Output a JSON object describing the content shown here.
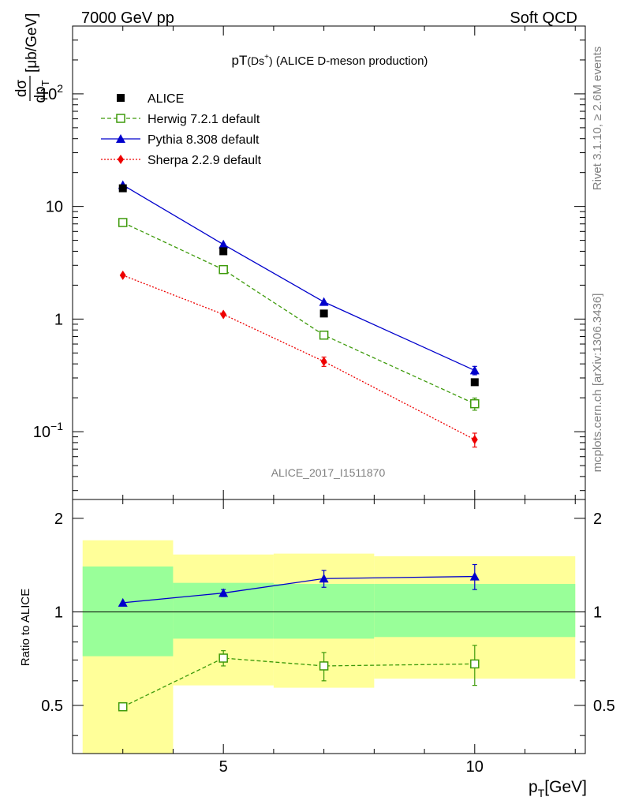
{
  "header": {
    "left": "7000 GeV pp",
    "right": "Soft QCD"
  },
  "side_labels": {
    "rivet": "Rivet 3.1.10, ≥ 2.6M events",
    "source": "mcplots.cern.ch [arXiv:1306.3436]"
  },
  "watermark": "ALICE_2017_I1511870",
  "chart_data": [
    {
      "type": "line",
      "title": "pT(Ds⁺) (ALICE D-meson production)",
      "title_main": "pT",
      "title_particle": "(Ds",
      "title_sup": "+",
      "title_close": ")",
      "title_rest": " (ALICE D-meson production)",
      "ylabel_num": "dσ",
      "ylabel_den": "dp",
      "ylabel_sub": "T",
      "ylabel_units": "[μb/GeV]",
      "yscale": "log",
      "xlim": [
        2,
        12.2
      ],
      "ylim": [
        0.025,
        400
      ],
      "yticks": [
        {
          "value": 100,
          "base": "10",
          "exp": "2"
        },
        {
          "value": 10,
          "base": "10",
          "exp": ""
        },
        {
          "value": 1,
          "base": "1",
          "exp": ""
        },
        {
          "value": 0.1,
          "base": "10",
          "exp": "−1"
        }
      ],
      "legend_position": "top-left",
      "series": [
        {
          "name": "ALICE",
          "style": "data",
          "color": "#000000",
          "marker": "square",
          "x": [
            3,
            5,
            7,
            10
          ],
          "y": [
            14.5,
            4.0,
            1.12,
            0.275
          ],
          "err": [
            0,
            0,
            0,
            0
          ]
        },
        {
          "name": "Herwig 7.2.1 default",
          "style": "dashed",
          "color": "#3d9a0a",
          "marker": "open-square",
          "x": [
            3,
            5,
            7,
            10
          ],
          "y": [
            7.2,
            2.75,
            0.72,
            0.177
          ],
          "err": [
            0,
            0,
            0.05,
            0.022
          ]
        },
        {
          "name": "Pythia 8.308 default",
          "style": "solid",
          "color": "#0000cc",
          "marker": "triangle",
          "x": [
            3,
            5,
            7,
            10
          ],
          "y": [
            15.5,
            4.6,
            1.42,
            0.35
          ],
          "err": [
            0,
            0,
            0,
            0.03
          ]
        },
        {
          "name": "Sherpa 2.2.9 default",
          "style": "dotted",
          "color": "#ee0000",
          "marker": "diamond",
          "x": [
            3,
            5,
            7,
            10
          ],
          "y": [
            2.45,
            1.1,
            0.42,
            0.085
          ],
          "err": [
            0,
            0,
            0.04,
            0.012
          ]
        }
      ]
    },
    {
      "type": "line",
      "ylabel": "Ratio to ALICE",
      "xlabel": "p",
      "xlabel_sub": "T",
      "xlabel_units": "[GeV]",
      "xlim": [
        2,
        12.2
      ],
      "ylim": [
        0.35,
        2.3
      ],
      "xticks": [
        {
          "value": 5,
          "label": "5"
        },
        {
          "value": 10,
          "label": "10"
        }
      ],
      "yticks": [
        {
          "value": 0.5,
          "label": "0.5"
        },
        {
          "value": 1,
          "label": "1"
        },
        {
          "value": 2,
          "label": "2"
        }
      ],
      "bands": [
        {
          "x0": 2.2,
          "x1": 4.0,
          "inner_lo": 0.72,
          "inner_hi": 1.4,
          "outer_lo": 0.35,
          "outer_hi": 1.7
        },
        {
          "x0": 4.0,
          "x1": 6.0,
          "inner_lo": 0.82,
          "inner_hi": 1.24,
          "outer_lo": 0.58,
          "outer_hi": 1.53
        },
        {
          "x0": 6.0,
          "x1": 8.0,
          "inner_lo": 0.82,
          "inner_hi": 1.23,
          "outer_lo": 0.57,
          "outer_hi": 1.54
        },
        {
          "x0": 8.0,
          "x1": 12.0,
          "inner_lo": 0.83,
          "inner_hi": 1.23,
          "outer_lo": 0.61,
          "outer_hi": 1.51
        }
      ],
      "series": [
        {
          "name": "Herwig 7.2.1 default",
          "style": "dashed",
          "color": "#3d9a0a",
          "marker": "open-square",
          "x": [
            3,
            5,
            7,
            10
          ],
          "y": [
            0.495,
            0.71,
            0.67,
            0.68
          ],
          "err": [
            0,
            0.04,
            0.07,
            0.1
          ]
        },
        {
          "name": "Pythia 8.308 default",
          "style": "solid",
          "color": "#0000cc",
          "marker": "triangle",
          "x": [
            3,
            5,
            7,
            10
          ],
          "y": [
            1.07,
            1.15,
            1.28,
            1.3
          ],
          "err": [
            0,
            0.03,
            0.08,
            0.12
          ]
        }
      ]
    }
  ]
}
